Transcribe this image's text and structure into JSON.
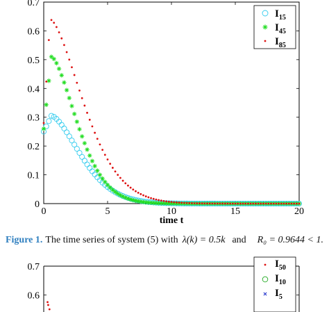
{
  "figure1": {
    "caption_label": "Figure 1.",
    "caption_text": "The time series of system (5) with",
    "caption_eq1": "λ(k) = 0.5k",
    "caption_and": "and",
    "caption_eq2": "R₀ = 0.9644 < 1.",
    "chart_data": {
      "type": "scatter",
      "xlabel": "time t",
      "ylabel": "",
      "title": "",
      "xlim": [
        0,
        20
      ],
      "ylim": [
        0,
        0.7
      ],
      "x_ticks": [
        "0",
        "5",
        "10",
        "15",
        "20"
      ],
      "y_ticks": [
        "0",
        "0.1",
        "0.2",
        "0.3",
        "0.4",
        "0.5",
        "0.6",
        "0.7"
      ],
      "legend_position": "top-right",
      "series": [
        {
          "name": "I",
          "subscript": "15",
          "marker": "circle",
          "color": "#33ccee",
          "peak": 0.305,
          "t_peak": 0.6,
          "start": 0.25,
          "decay_tau": 3.2
        },
        {
          "name": "I",
          "subscript": "45",
          "marker": "star",
          "color": "#22dd22",
          "peak": 0.51,
          "t_peak": 0.6,
          "start": 0.26,
          "decay_tau": 2.8
        },
        {
          "name": "I",
          "subscript": "85",
          "marker": "dot",
          "color": "#dd1111",
          "peak": 0.64,
          "t_peak": 0.5,
          "start": 0.28,
          "decay_tau": 3.6
        }
      ]
    }
  },
  "figure2": {
    "chart_data": {
      "type": "scatter",
      "xlabel": "",
      "ylabel": "",
      "ylim": [
        0,
        0.7
      ],
      "y_ticks": [
        "0.7",
        "0.6"
      ],
      "legend_position": "top-right",
      "series": [
        {
          "name": "I",
          "subscript": "50",
          "marker": "dot",
          "color": "#dd1111"
        },
        {
          "name": "I",
          "subscript": "10",
          "marker": "circle",
          "color": "#22aa22"
        },
        {
          "name": "I",
          "subscript": "5",
          "marker": "x",
          "color": "#2233cc"
        }
      ],
      "visible_points": [
        {
          "series": 0,
          "x": 0.3,
          "y": 0.575
        },
        {
          "series": 0,
          "x": 0.35,
          "y": 0.565
        },
        {
          "series": 0,
          "x": 0.45,
          "y": 0.55
        }
      ]
    }
  }
}
